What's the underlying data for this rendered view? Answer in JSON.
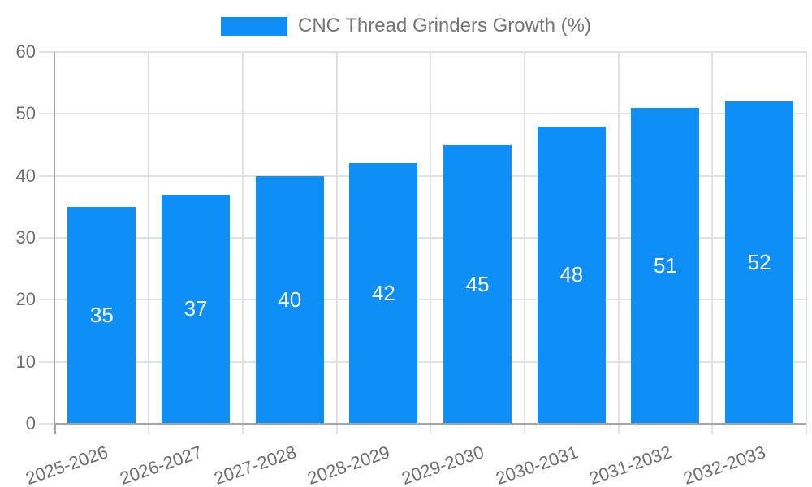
{
  "chart_data": {
    "type": "bar",
    "title": "CNC Thread Grinders Growth (%)",
    "categories": [
      "2025-2026",
      "2026-2027",
      "2027-2028",
      "2028-2029",
      "2029-2030",
      "2030-2031",
      "2031-2032",
      "2032-2033"
    ],
    "values": [
      35,
      37,
      40,
      42,
      45,
      48,
      51,
      52
    ],
    "xlabel": "",
    "ylabel": "",
    "ylim": [
      0,
      60
    ],
    "yticks": [
      0,
      10,
      20,
      30,
      40,
      50,
      60
    ],
    "grid": true,
    "legend_position": "top-center",
    "bar_value_labels": "inside-center",
    "colors": {
      "bar": "#0d8ff7",
      "bar_label": "#ffffff",
      "axis_text": "#6f6f6f",
      "legend_text": "#757575",
      "grid_line": "#e2e2e2",
      "axis_line": "#a5a5a5",
      "background": "#ffffff"
    }
  }
}
